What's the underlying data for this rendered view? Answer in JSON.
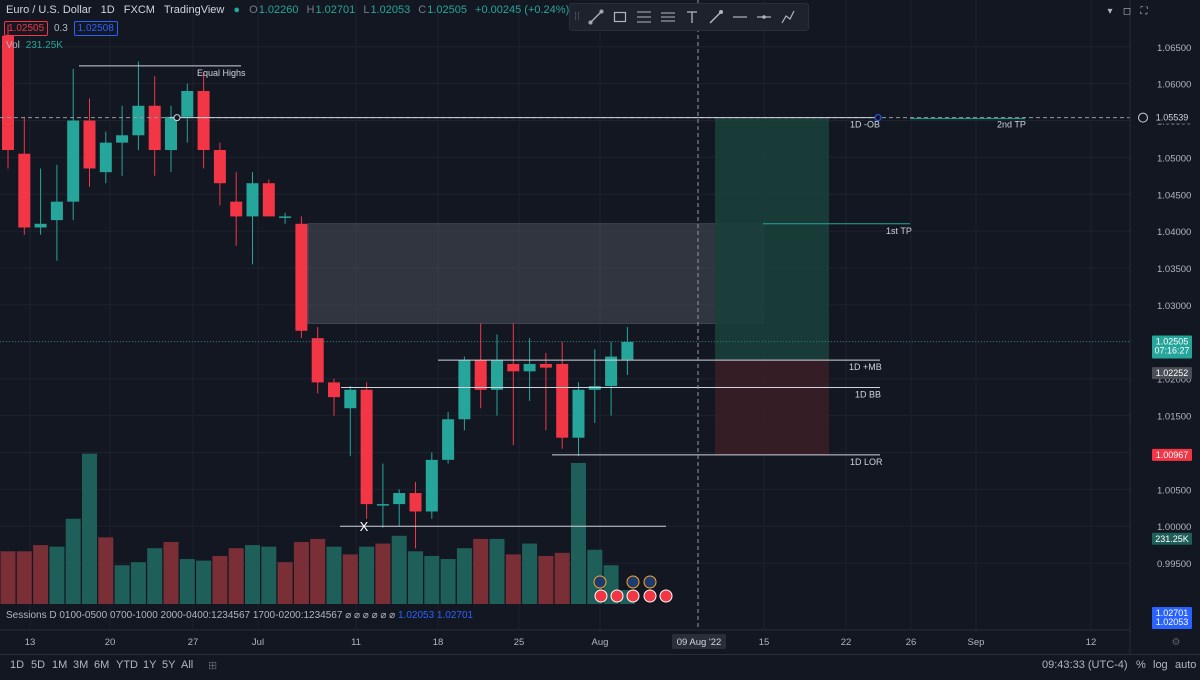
{
  "header": {
    "symbol": "Euro / U.S. Dollar",
    "interval": "1D",
    "exchange": "FXCM",
    "source": "TradingView",
    "ohlc": {
      "o_label": "O",
      "o": "1.02260",
      "h_label": "H",
      "h": "1.02701",
      "l_label": "L",
      "l": "1.02053",
      "c_label": "C",
      "c": "1.02505",
      "change": "+0.00245 (+0.24%)"
    },
    "sell_price": "1.02505",
    "spread": "0.3",
    "buy_price": "1.02508",
    "vol_label": "Vol",
    "vol_value": "231.25K"
  },
  "drawing_toolbar": {
    "tools": [
      "grip-icon",
      "trendline-icon",
      "rectangle-icon",
      "fib-icon",
      "parallel-channel-icon",
      "text-icon",
      "brush-icon",
      "horizontal-line-icon",
      "horizontal-ray-icon",
      "path-icon"
    ]
  },
  "window_controls": [
    "collapse-icon",
    "maximize-icon",
    "fullscreen-icon"
  ],
  "price_axis": {
    "ticks": [
      "1.06500",
      "1.06000",
      "1.05500",
      "1.05000",
      "1.04500",
      "1.04000",
      "1.03500",
      "1.03000",
      "1.02500",
      "1.02000",
      "1.01500",
      "1.01000",
      "1.00500",
      "1.00000",
      "0.99500"
    ],
    "labels": {
      "tp2": "1.05539",
      "current": "1.02505",
      "countdown": "07:16:27",
      "gray": "1.02252",
      "stop": "1.00967",
      "volume": "231.25K",
      "high": "1.02701",
      "low": "1.02053"
    }
  },
  "time_axis": {
    "ticks": [
      "13",
      "20",
      "27",
      "Jul",
      "11",
      "18",
      "25",
      "Aug",
      "15",
      "22",
      "26",
      "Sep",
      "12"
    ],
    "crosshair_label": "09 Aug '22"
  },
  "annotations": {
    "equal_highs": "Equal Highs",
    "ob": "1D -OB",
    "tp2": "2nd TP",
    "tp1": "1st TP",
    "mb": "1D +MB",
    "bb": "1D BB",
    "lor": "1D LOR",
    "x_mark": "X"
  },
  "sessions": {
    "text": "Sessions D 0100-0500 0700-1000 2000-0400:1234567 1700-0200:1234567",
    "symbols": "⌀ ⌀ ⌀ ⌀ ⌀ ⌀",
    "low": "1.02053",
    "high": "1.02701"
  },
  "bottom_bar": {
    "ranges": [
      "1D",
      "5D",
      "1M",
      "3M",
      "6M",
      "YTD",
      "1Y",
      "5Y",
      "All"
    ],
    "time": "09:43:33 (UTC-4)",
    "percent": "%",
    "log": "log",
    "auto": "auto"
  },
  "colors": {
    "bull": "#26a69a",
    "bear": "#f23645",
    "background": "#131722",
    "grid": "#1e222d",
    "target_zone": "#1b3f3b",
    "stop_zone": "#3a1e27"
  },
  "chart_data": {
    "type": "candlestick",
    "price_ylim": [
      0.99,
      1.067
    ],
    "candles": [
      {
        "o": 1.0665,
        "h": 1.068,
        "l": 1.0485,
        "c": 1.051
      },
      {
        "o": 1.0505,
        "h": 1.0555,
        "l": 1.0395,
        "c": 1.0405
      },
      {
        "o": 1.0405,
        "h": 1.0485,
        "l": 1.0395,
        "c": 1.041
      },
      {
        "o": 1.0415,
        "h": 1.049,
        "l": 1.036,
        "c": 1.044
      },
      {
        "o": 1.044,
        "h": 1.062,
        "l": 1.0415,
        "c": 1.055
      },
      {
        "o": 1.055,
        "h": 1.058,
        "l": 1.046,
        "c": 1.0485
      },
      {
        "o": 1.048,
        "h": 1.0535,
        "l": 1.0465,
        "c": 1.052
      },
      {
        "o": 1.052,
        "h": 1.057,
        "l": 1.0475,
        "c": 1.053
      },
      {
        "o": 1.053,
        "h": 1.063,
        "l": 1.051,
        "c": 1.057
      },
      {
        "o": 1.057,
        "h": 1.061,
        "l": 1.0475,
        "c": 1.051
      },
      {
        "o": 1.051,
        "h": 1.057,
        "l": 1.048,
        "c": 1.0555
      },
      {
        "o": 1.0555,
        "h": 1.06,
        "l": 1.052,
        "c": 1.059
      },
      {
        "o": 1.059,
        "h": 1.0615,
        "l": 1.0485,
        "c": 1.051
      },
      {
        "o": 1.051,
        "h": 1.052,
        "l": 1.0435,
        "c": 1.0465
      },
      {
        "o": 1.044,
        "h": 1.048,
        "l": 1.038,
        "c": 1.042
      },
      {
        "o": 1.042,
        "h": 1.048,
        "l": 1.0355,
        "c": 1.0465
      },
      {
        "o": 1.0465,
        "h": 1.047,
        "l": 1.0425,
        "c": 1.042
      },
      {
        "o": 1.042,
        "h": 1.0425,
        "l": 1.041,
        "c": 1.042
      },
      {
        "o": 1.041,
        "h": 1.042,
        "l": 1.0255,
        "c": 1.0265
      },
      {
        "o": 1.0255,
        "h": 1.027,
        "l": 1.018,
        "c": 1.0195
      },
      {
        "o": 1.0195,
        "h": 1.02,
        "l": 1.015,
        "c": 1.0175
      },
      {
        "o": 1.016,
        "h": 1.019,
        "l": 1.0095,
        "c": 1.0185
      },
      {
        "o": 1.0185,
        "h": 1.0195,
        "l": 1.001,
        "c": 1.003
      },
      {
        "o": 1.003,
        "h": 1.0085,
        "l": 0.9998,
        "c": 1.003
      },
      {
        "o": 1.003,
        "h": 1.005,
        "l": 1.0,
        "c": 1.0045
      },
      {
        "o": 1.0045,
        "h": 1.006,
        "l": 0.997,
        "c": 1.002
      },
      {
        "o": 1.002,
        "h": 1.01,
        "l": 1.001,
        "c": 1.009
      },
      {
        "o": 1.009,
        "h": 1.0155,
        "l": 1.0085,
        "c": 1.0145
      },
      {
        "o": 1.0145,
        "h": 1.023,
        "l": 1.013,
        "c": 1.0225
      },
      {
        "o": 1.0225,
        "h": 1.0275,
        "l": 1.016,
        "c": 1.0185
      },
      {
        "o": 1.0185,
        "h": 1.026,
        "l": 1.015,
        "c": 1.0225
      },
      {
        "o": 1.022,
        "h": 1.0275,
        "l": 1.011,
        "c": 1.021
      },
      {
        "o": 1.021,
        "h": 1.0255,
        "l": 1.017,
        "c": 1.022
      },
      {
        "o": 1.022,
        "h": 1.0235,
        "l": 1.013,
        "c": 1.0215
      },
      {
        "o": 1.022,
        "h": 1.025,
        "l": 1.0105,
        "c": 1.012
      },
      {
        "o": 1.012,
        "h": 1.0195,
        "l": 1.0095,
        "c": 1.0185
      },
      {
        "o": 1.0185,
        "h": 1.024,
        "l": 1.014,
        "c": 1.019
      },
      {
        "o": 1.019,
        "h": 1.025,
        "l": 1.015,
        "c": 1.023
      },
      {
        "o": 1.0226,
        "h": 1.027,
        "l": 1.0205,
        "c": 1.025
      }
    ],
    "volume": [
      {
        "v": 0.34,
        "bull": false
      },
      {
        "v": 0.34,
        "bull": false
      },
      {
        "v": 0.38,
        "bull": false
      },
      {
        "v": 0.37,
        "bull": true
      },
      {
        "v": 0.55,
        "bull": true
      },
      {
        "v": 0.97,
        "bull": true
      },
      {
        "v": 0.43,
        "bull": false
      },
      {
        "v": 0.25,
        "bull": true
      },
      {
        "v": 0.27,
        "bull": true
      },
      {
        "v": 0.36,
        "bull": true
      },
      {
        "v": 0.4,
        "bull": false
      },
      {
        "v": 0.29,
        "bull": true
      },
      {
        "v": 0.28,
        "bull": true
      },
      {
        "v": 0.31,
        "bull": false
      },
      {
        "v": 0.36,
        "bull": false
      },
      {
        "v": 0.38,
        "bull": true
      },
      {
        "v": 0.37,
        "bull": true
      },
      {
        "v": 0.27,
        "bull": false
      },
      {
        "v": 0.4,
        "bull": false
      },
      {
        "v": 0.42,
        "bull": false
      },
      {
        "v": 0.37,
        "bull": true
      },
      {
        "v": 0.32,
        "bull": false
      },
      {
        "v": 0.37,
        "bull": true
      },
      {
        "v": 0.39,
        "bull": false
      },
      {
        "v": 0.44,
        "bull": true
      },
      {
        "v": 0.34,
        "bull": true
      },
      {
        "v": 0.31,
        "bull": true
      },
      {
        "v": 0.29,
        "bull": true
      },
      {
        "v": 0.36,
        "bull": true
      },
      {
        "v": 0.42,
        "bull": false
      },
      {
        "v": 0.42,
        "bull": true
      },
      {
        "v": 0.32,
        "bull": false
      },
      {
        "v": 0.39,
        "bull": true
      },
      {
        "v": 0.31,
        "bull": false
      },
      {
        "v": 0.33,
        "bull": false
      },
      {
        "v": 0.91,
        "bull": true
      },
      {
        "v": 0.35,
        "bull": true
      },
      {
        "v": 0.25,
        "bull": true
      },
      {
        "v": 0.09,
        "bull": true
      }
    ],
    "levels": {
      "equal_highs": 1.0624,
      "ob": 1.05539,
      "tp1": 1.041,
      "mb": 1.02252,
      "bb": 1.0188,
      "lor": 1.00967,
      "x_line": 1.0
    },
    "fvg_zone": [
      1.0275,
      1.041
    ],
    "position": {
      "entry": 1.02252,
      "target": 1.05539,
      "stop": 1.00967
    }
  }
}
